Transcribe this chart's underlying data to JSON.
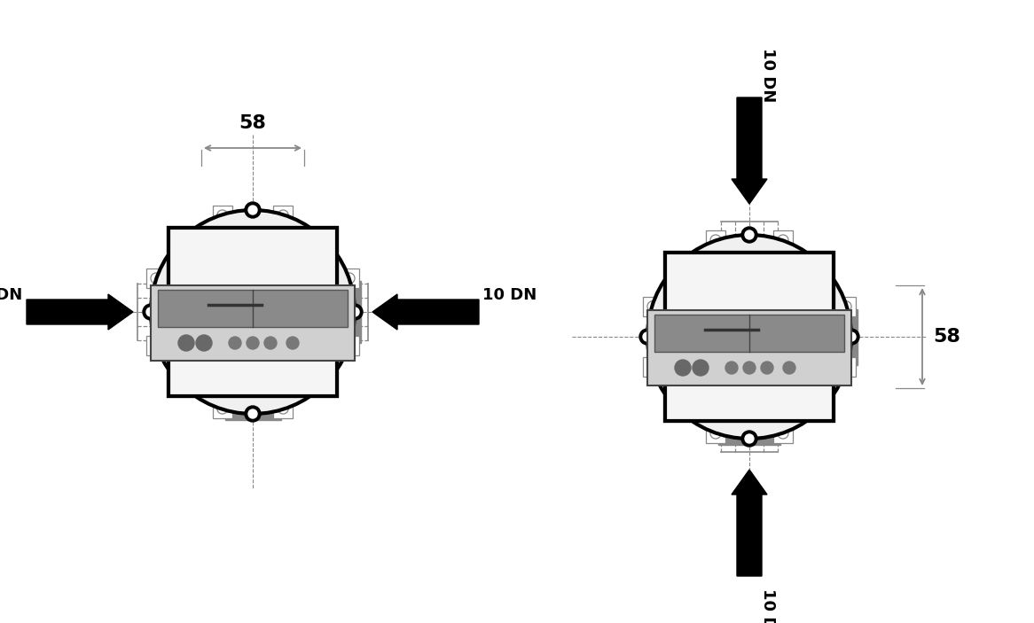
{
  "bg_color": "#ffffff",
  "draw_color": "#000000",
  "gray_color": "#888888",
  "gray_light": "#aaaaaa",
  "gray_dashed": "#999999",
  "dim_label_58": "58",
  "label_10dn": "10 DN",
  "meter_frame_color": "#c8c8c8",
  "meter_lcd_color": "#909090",
  "meter_lcd_dark": "#606060",
  "meter_btn_color": "#787878"
}
